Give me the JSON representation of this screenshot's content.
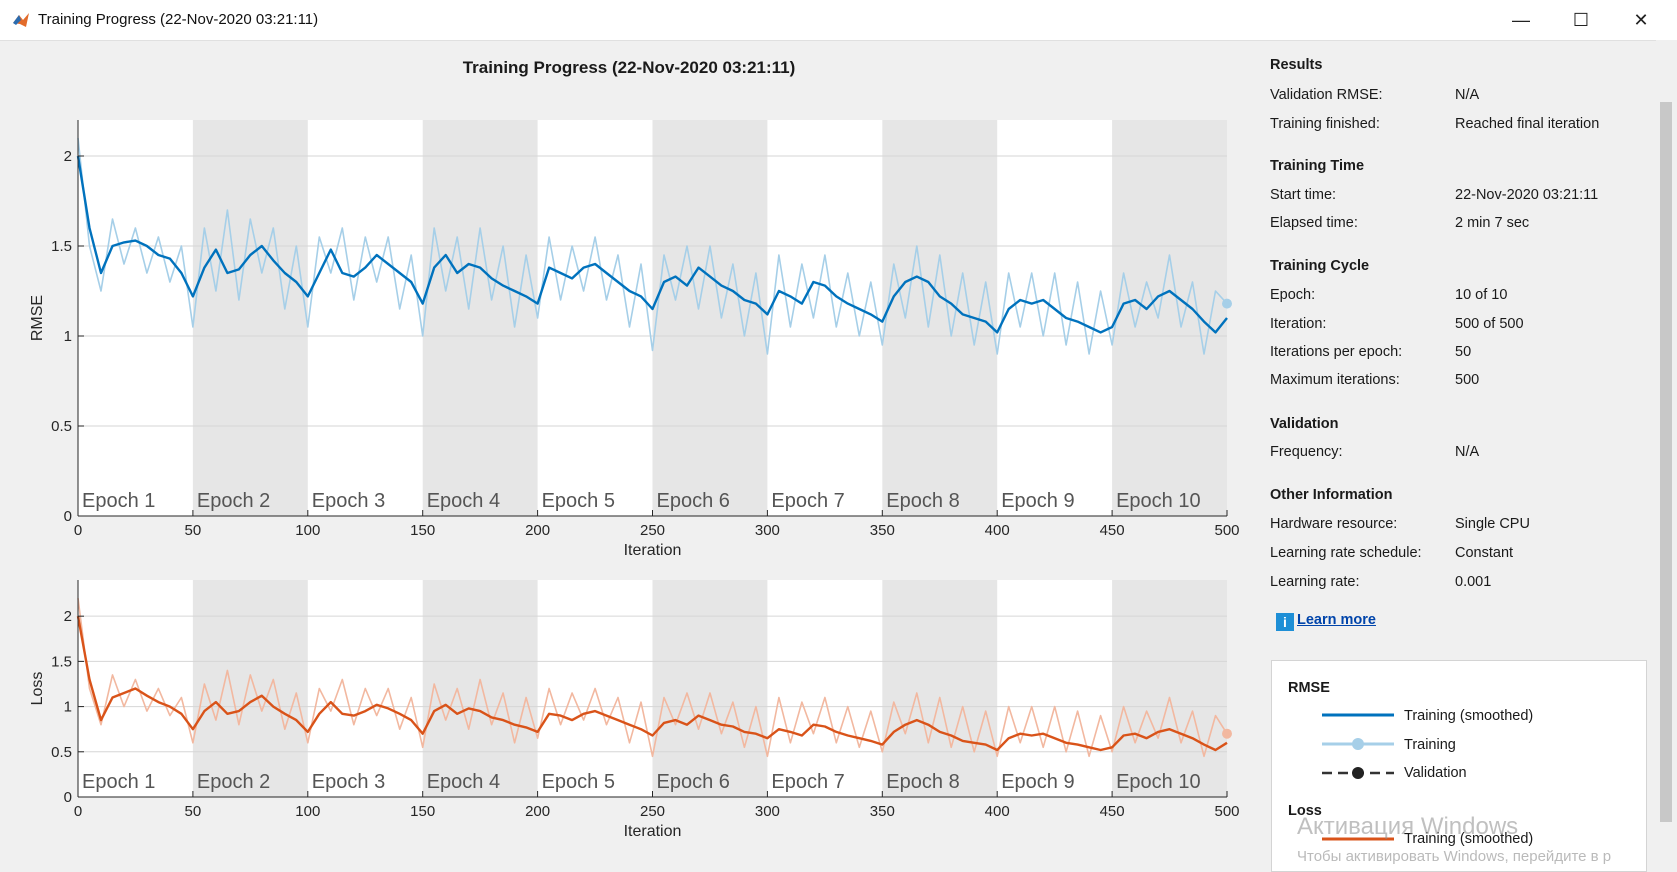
{
  "window": {
    "title": "Training Progress (22-Nov-2020 03:21:11)",
    "minimize_label": "—",
    "maximize_label": "☐",
    "close_label": "✕"
  },
  "chart_title": "Training Progress (22-Nov-2020 03:21:11)",
  "chart_data": [
    {
      "type": "line",
      "title": "",
      "xlabel": "Iteration",
      "ylabel": "RMSE",
      "xlim": [
        0,
        500
      ],
      "ylim": [
        0,
        2.2
      ],
      "xticks": [
        0,
        50,
        100,
        150,
        200,
        250,
        300,
        350,
        400,
        450,
        500
      ],
      "yticks": [
        0,
        0.5,
        1,
        1.5,
        2
      ],
      "grid": true,
      "epoch_labels": [
        "Epoch 1",
        "Epoch 2",
        "Epoch 3",
        "Epoch 4",
        "Epoch 5",
        "Epoch 6",
        "Epoch 7",
        "Epoch 8",
        "Epoch 9",
        "Epoch 10"
      ],
      "series": [
        {
          "name": "Training (smoothed)",
          "color": "#0072bd",
          "x": [
            0,
            5,
            10,
            15,
            20,
            25,
            30,
            35,
            40,
            45,
            50,
            55,
            60,
            65,
            70,
            75,
            80,
            85,
            90,
            95,
            100,
            105,
            110,
            115,
            120,
            125,
            130,
            135,
            140,
            145,
            150,
            155,
            160,
            165,
            170,
            175,
            180,
            185,
            190,
            195,
            200,
            205,
            210,
            215,
            220,
            225,
            230,
            235,
            240,
            245,
            250,
            255,
            260,
            265,
            270,
            275,
            280,
            285,
            290,
            295,
            300,
            305,
            310,
            315,
            320,
            325,
            330,
            335,
            340,
            345,
            350,
            355,
            360,
            365,
            370,
            375,
            380,
            385,
            390,
            395,
            400,
            405,
            410,
            415,
            420,
            425,
            430,
            435,
            440,
            445,
            450,
            455,
            460,
            465,
            470,
            475,
            480,
            485,
            490,
            495,
            500
          ],
          "y": [
            2.0,
            1.6,
            1.35,
            1.5,
            1.52,
            1.53,
            1.5,
            1.45,
            1.43,
            1.35,
            1.22,
            1.38,
            1.48,
            1.35,
            1.37,
            1.45,
            1.5,
            1.42,
            1.35,
            1.3,
            1.22,
            1.35,
            1.48,
            1.35,
            1.33,
            1.38,
            1.45,
            1.4,
            1.35,
            1.3,
            1.18,
            1.38,
            1.45,
            1.35,
            1.4,
            1.38,
            1.32,
            1.28,
            1.25,
            1.22,
            1.18,
            1.38,
            1.35,
            1.32,
            1.38,
            1.4,
            1.35,
            1.3,
            1.25,
            1.22,
            1.15,
            1.3,
            1.33,
            1.28,
            1.38,
            1.33,
            1.28,
            1.25,
            1.2,
            1.18,
            1.12,
            1.25,
            1.22,
            1.18,
            1.3,
            1.28,
            1.22,
            1.18,
            1.15,
            1.12,
            1.08,
            1.22,
            1.3,
            1.33,
            1.3,
            1.22,
            1.18,
            1.12,
            1.1,
            1.08,
            1.02,
            1.15,
            1.2,
            1.18,
            1.2,
            1.15,
            1.1,
            1.08,
            1.05,
            1.02,
            1.05,
            1.18,
            1.2,
            1.15,
            1.22,
            1.25,
            1.2,
            1.15,
            1.08,
            1.02,
            1.1
          ]
        },
        {
          "name": "Training",
          "color": "#a6cfe8",
          "x": [
            0,
            5,
            10,
            15,
            20,
            25,
            30,
            35,
            40,
            45,
            50,
            55,
            60,
            65,
            70,
            75,
            80,
            85,
            90,
            95,
            100,
            105,
            110,
            115,
            120,
            125,
            130,
            135,
            140,
            145,
            150,
            155,
            160,
            165,
            170,
            175,
            180,
            185,
            190,
            195,
            200,
            205,
            210,
            215,
            220,
            225,
            230,
            235,
            240,
            245,
            250,
            255,
            260,
            265,
            270,
            275,
            280,
            285,
            290,
            295,
            300,
            305,
            310,
            315,
            320,
            325,
            330,
            335,
            340,
            345,
            350,
            355,
            360,
            365,
            370,
            375,
            380,
            385,
            390,
            395,
            400,
            405,
            410,
            415,
            420,
            425,
            430,
            435,
            440,
            445,
            450,
            455,
            460,
            465,
            470,
            475,
            480,
            485,
            490,
            495,
            500
          ],
          "y": [
            2.1,
            1.5,
            1.25,
            1.65,
            1.4,
            1.6,
            1.35,
            1.55,
            1.3,
            1.5,
            1.05,
            1.6,
            1.25,
            1.7,
            1.2,
            1.65,
            1.35,
            1.6,
            1.15,
            1.5,
            1.05,
            1.55,
            1.35,
            1.6,
            1.2,
            1.55,
            1.3,
            1.55,
            1.15,
            1.45,
            1.0,
            1.6,
            1.25,
            1.55,
            1.15,
            1.6,
            1.2,
            1.5,
            1.05,
            1.45,
            1.1,
            1.55,
            1.2,
            1.5,
            1.25,
            1.55,
            1.2,
            1.45,
            1.05,
            1.4,
            0.92,
            1.45,
            1.2,
            1.5,
            1.15,
            1.5,
            1.1,
            1.4,
            1.0,
            1.35,
            0.9,
            1.45,
            1.05,
            1.4,
            1.1,
            1.45,
            1.05,
            1.35,
            1.0,
            1.3,
            0.95,
            1.4,
            1.1,
            1.5,
            1.05,
            1.45,
            1.0,
            1.35,
            0.95,
            1.3,
            0.9,
            1.35,
            1.05,
            1.35,
            1.0,
            1.35,
            0.95,
            1.3,
            0.9,
            1.25,
            0.95,
            1.35,
            1.05,
            1.3,
            1.1,
            1.45,
            1.05,
            1.3,
            0.9,
            1.25,
            1.18
          ]
        }
      ],
      "legend": [
        "Training (smoothed)",
        "Training",
        "Validation"
      ]
    },
    {
      "type": "line",
      "title": "",
      "xlabel": "Iteration",
      "ylabel": "Loss",
      "xlim": [
        0,
        500
      ],
      "ylim": [
        0,
        2.4
      ],
      "xticks": [
        0,
        50,
        100,
        150,
        200,
        250,
        300,
        350,
        400,
        450,
        500
      ],
      "yticks": [
        0,
        0.5,
        1,
        1.5,
        2
      ],
      "grid": true,
      "epoch_labels": [
        "Epoch 1",
        "Epoch 2",
        "Epoch 3",
        "Epoch 4",
        "Epoch 5",
        "Epoch 6",
        "Epoch 7",
        "Epoch 8",
        "Epoch 9",
        "Epoch 10"
      ],
      "series": [
        {
          "name": "Training (smoothed)",
          "color": "#d95319",
          "x": [
            0,
            5,
            10,
            15,
            20,
            25,
            30,
            35,
            40,
            45,
            50,
            55,
            60,
            65,
            70,
            75,
            80,
            85,
            90,
            95,
            100,
            105,
            110,
            115,
            120,
            125,
            130,
            135,
            140,
            145,
            150,
            155,
            160,
            165,
            170,
            175,
            180,
            185,
            190,
            195,
            200,
            205,
            210,
            215,
            220,
            225,
            230,
            235,
            240,
            245,
            250,
            255,
            260,
            265,
            270,
            275,
            280,
            285,
            290,
            295,
            300,
            305,
            310,
            315,
            320,
            325,
            330,
            335,
            340,
            345,
            350,
            355,
            360,
            365,
            370,
            375,
            380,
            385,
            390,
            395,
            400,
            405,
            410,
            415,
            420,
            425,
            430,
            435,
            440,
            445,
            450,
            455,
            460,
            465,
            470,
            475,
            480,
            485,
            490,
            495,
            500
          ],
          "y": [
            2.0,
            1.3,
            0.85,
            1.1,
            1.15,
            1.2,
            1.12,
            1.05,
            1.0,
            0.92,
            0.75,
            0.95,
            1.05,
            0.92,
            0.95,
            1.05,
            1.12,
            1.0,
            0.92,
            0.85,
            0.72,
            0.92,
            1.05,
            0.92,
            0.9,
            0.95,
            1.02,
            0.98,
            0.92,
            0.85,
            0.7,
            0.95,
            1.02,
            0.92,
            0.98,
            0.95,
            0.88,
            0.85,
            0.8,
            0.77,
            0.72,
            0.92,
            0.9,
            0.85,
            0.92,
            0.95,
            0.9,
            0.85,
            0.8,
            0.75,
            0.68,
            0.82,
            0.85,
            0.8,
            0.9,
            0.85,
            0.8,
            0.78,
            0.72,
            0.7,
            0.65,
            0.75,
            0.72,
            0.68,
            0.8,
            0.78,
            0.72,
            0.68,
            0.65,
            0.62,
            0.58,
            0.72,
            0.8,
            0.85,
            0.8,
            0.72,
            0.68,
            0.62,
            0.6,
            0.58,
            0.52,
            0.65,
            0.7,
            0.68,
            0.7,
            0.65,
            0.6,
            0.58,
            0.55,
            0.52,
            0.55,
            0.68,
            0.7,
            0.65,
            0.72,
            0.75,
            0.7,
            0.65,
            0.58,
            0.52,
            0.6
          ]
        },
        {
          "name": "Training",
          "color": "#f2b8a0",
          "x": [
            0,
            5,
            10,
            15,
            20,
            25,
            30,
            35,
            40,
            45,
            50,
            55,
            60,
            65,
            70,
            75,
            80,
            85,
            90,
            95,
            100,
            105,
            110,
            115,
            120,
            125,
            130,
            135,
            140,
            145,
            150,
            155,
            160,
            165,
            170,
            175,
            180,
            185,
            190,
            195,
            200,
            205,
            210,
            215,
            220,
            225,
            230,
            235,
            240,
            245,
            250,
            255,
            260,
            265,
            270,
            275,
            280,
            285,
            290,
            295,
            300,
            305,
            310,
            315,
            320,
            325,
            330,
            335,
            340,
            345,
            350,
            355,
            360,
            365,
            370,
            375,
            380,
            385,
            390,
            395,
            400,
            405,
            410,
            415,
            420,
            425,
            430,
            435,
            440,
            445,
            450,
            455,
            460,
            465,
            470,
            475,
            480,
            485,
            490,
            495,
            500
          ],
          "y": [
            2.2,
            1.2,
            0.8,
            1.35,
            1.0,
            1.3,
            0.95,
            1.2,
            0.9,
            1.1,
            0.6,
            1.25,
            0.85,
            1.4,
            0.8,
            1.35,
            0.95,
            1.3,
            0.75,
            1.15,
            0.6,
            1.2,
            0.95,
            1.3,
            0.8,
            1.2,
            0.9,
            1.2,
            0.75,
            1.1,
            0.55,
            1.25,
            0.85,
            1.2,
            0.75,
            1.3,
            0.8,
            1.15,
            0.6,
            1.1,
            0.65,
            1.2,
            0.8,
            1.15,
            0.85,
            1.2,
            0.8,
            1.1,
            0.6,
            1.05,
            0.45,
            1.1,
            0.8,
            1.15,
            0.75,
            1.15,
            0.7,
            1.05,
            0.55,
            1.0,
            0.45,
            1.1,
            0.6,
            1.05,
            0.7,
            1.1,
            0.6,
            1.0,
            0.55,
            0.95,
            0.5,
            1.05,
            0.7,
            1.15,
            0.6,
            1.1,
            0.55,
            1.0,
            0.5,
            0.95,
            0.45,
            1.0,
            0.6,
            1.0,
            0.55,
            1.0,
            0.5,
            0.95,
            0.45,
            0.9,
            0.5,
            1.0,
            0.6,
            0.95,
            0.65,
            1.1,
            0.6,
            0.95,
            0.45,
            0.9,
            0.7
          ]
        }
      ],
      "legend": [
        "Training (smoothed)"
      ]
    }
  ],
  "panel": {
    "results": {
      "heading": "Results",
      "rows": [
        {
          "label": "Validation RMSE:",
          "value": "N/A"
        },
        {
          "label": "Training finished:",
          "value": "Reached final iteration"
        }
      ]
    },
    "time": {
      "heading": "Training Time",
      "rows": [
        {
          "label": "Start time:",
          "value": "22-Nov-2020 03:21:11"
        },
        {
          "label": "Elapsed time:",
          "value": "2 min 7 sec"
        }
      ]
    },
    "cycle": {
      "heading": "Training Cycle",
      "rows": [
        {
          "label": "Epoch:",
          "value": "10 of 10"
        },
        {
          "label": "Iteration:",
          "value": "500 of 500"
        },
        {
          "label": "Iterations per epoch:",
          "value": "50"
        },
        {
          "label": "Maximum iterations:",
          "value": "500"
        }
      ]
    },
    "validation": {
      "heading": "Validation",
      "rows": [
        {
          "label": "Frequency:",
          "value": "N/A"
        }
      ]
    },
    "other": {
      "heading": "Other Information",
      "rows": [
        {
          "label": "Hardware resource:",
          "value": "Single CPU"
        },
        {
          "label": "Learning rate schedule:",
          "value": "Constant"
        },
        {
          "label": "Learning rate:",
          "value": "0.001"
        }
      ]
    },
    "learn_more": "Learn more",
    "info_glyph": "i"
  },
  "legend_box": {
    "rmse_heading": "RMSE",
    "rmse_items": [
      "Training (smoothed)",
      "Training",
      "Validation"
    ],
    "loss_heading": "Loss",
    "loss_items": [
      "Training (smoothed)"
    ],
    "colors": {
      "rmse_smoothed": "#0072bd",
      "rmse_raw": "#a6cfe8",
      "validation": "#333333",
      "loss_smoothed": "#d95319"
    }
  },
  "watermark": {
    "line1": "Активация Windows",
    "line2": "Чтобы активировать Windows, перейдите в р"
  }
}
